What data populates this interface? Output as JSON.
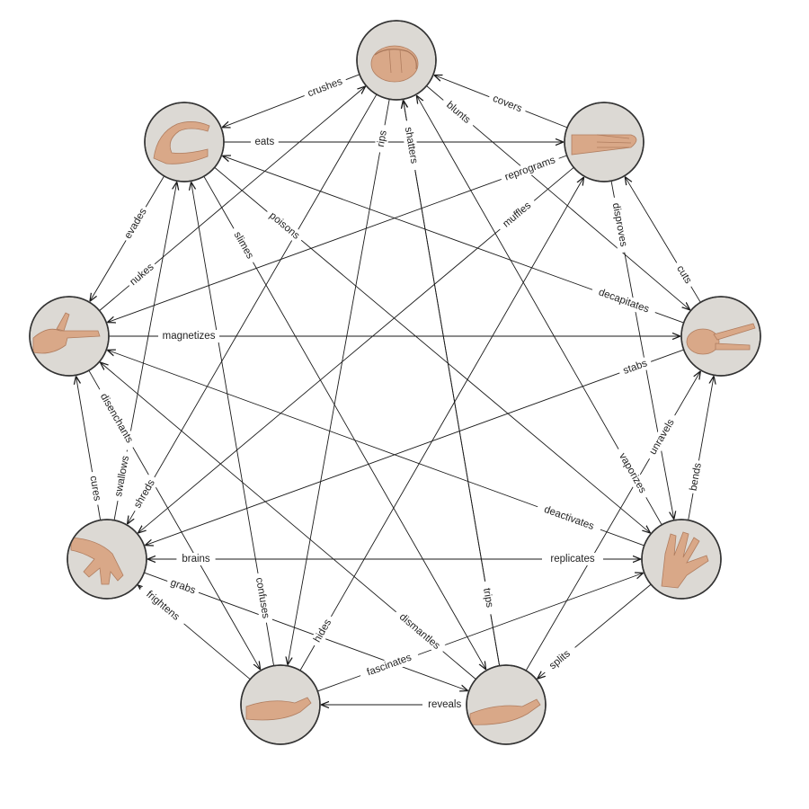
{
  "nodes": [
    {
      "id": "rock",
      "gesture": "fist"
    },
    {
      "id": "paper",
      "gesture": "flat-hand"
    },
    {
      "id": "scissors",
      "gesture": "two-fingers"
    },
    {
      "id": "fire",
      "gesture": "spread-fingers"
    },
    {
      "id": "sponge",
      "gesture": "open-palm"
    },
    {
      "id": "air",
      "gesture": "cupped-palm"
    },
    {
      "id": "water",
      "gesture": "hanging-hand"
    },
    {
      "id": "gun",
      "gesture": "finger-gun"
    },
    {
      "id": "snake",
      "gesture": "c-shape"
    }
  ],
  "edges": [
    {
      "from": "rock",
      "to": "snake",
      "label": "crushes"
    },
    {
      "from": "paper",
      "to": "rock",
      "label": "covers"
    },
    {
      "from": "rock",
      "to": "scissors",
      "label": "blunts"
    },
    {
      "from": "snake",
      "to": "paper",
      "label": "eats"
    },
    {
      "from": "scissors",
      "to": "paper",
      "label": "cuts"
    },
    {
      "from": "snake",
      "to": "gun",
      "label": "evades"
    },
    {
      "from": "gun",
      "to": "scissors",
      "label": "magnetizes"
    },
    {
      "from": "water",
      "to": "gun",
      "label": "cures"
    },
    {
      "from": "water",
      "to": "fire",
      "label": "brains"
    },
    {
      "from": "fire",
      "to": "scissors",
      "label": "bends"
    },
    {
      "from": "water",
      "to": "sponge",
      "label": "grabs"
    },
    {
      "from": "sponge",
      "to": "air",
      "label": "reveals"
    },
    {
      "from": "air",
      "to": "fire",
      "label": "fascinates"
    },
    {
      "from": "sponge",
      "to": "rock",
      "label": "trips"
    },
    {
      "from": "rock",
      "to": "air",
      "label": "rips"
    },
    {
      "from": "snake",
      "to": "sponge",
      "label": "slimes"
    },
    {
      "from": "snake",
      "to": "fire",
      "label": "poisons"
    },
    {
      "from": "paper",
      "to": "gun",
      "label": "reprograms"
    },
    {
      "from": "paper",
      "to": "water",
      "label": "muffles"
    },
    {
      "from": "paper",
      "to": "fire",
      "label": "disproves"
    },
    {
      "from": "scissors",
      "to": "snake",
      "label": "decapitates"
    },
    {
      "from": "scissors",
      "to": "water",
      "label": "stabs"
    },
    {
      "from": "sponge",
      "to": "scissors",
      "label": "unravels"
    },
    {
      "from": "gun",
      "to": "air",
      "label": "disenchants"
    },
    {
      "from": "water",
      "to": "snake",
      "label": "swallows"
    },
    {
      "from": "fire",
      "to": "gun",
      "label": "deactivates"
    },
    {
      "from": "fire",
      "to": "rock",
      "label": "vaporizes"
    },
    {
      "from": "fire",
      "to": "water",
      "label": "replicates"
    },
    {
      "from": "air",
      "to": "snake",
      "label": "confuses"
    },
    {
      "from": "air",
      "to": "paper",
      "label": "hides"
    },
    {
      "from": "fire",
      "to": "sponge",
      "label": "splits"
    },
    {
      "from": "sponge",
      "to": "gun",
      "label": "dismantles"
    },
    {
      "from": "air",
      "to": "water",
      "label": "frightens"
    },
    {
      "from": "rock",
      "to": "water",
      "label": "shreds"
    },
    {
      "from": "gun",
      "to": "nukes_target",
      "label": "nukes"
    },
    {
      "from": "sponge",
      "to": "rock",
      "label": "shatters"
    }
  ]
}
